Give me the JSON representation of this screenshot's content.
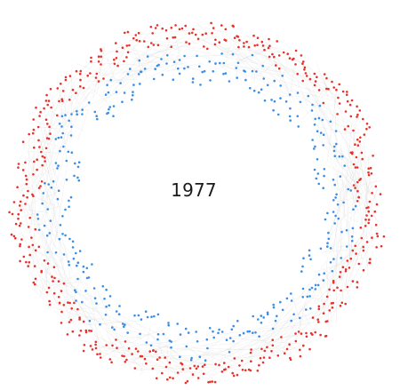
{
  "year": "1977",
  "colors": {
    "outer_nodes": "#e8312a",
    "inner_nodes": "#3a8ee6",
    "links": "#cfcfcf",
    "background": "#ffffff"
  }
}
